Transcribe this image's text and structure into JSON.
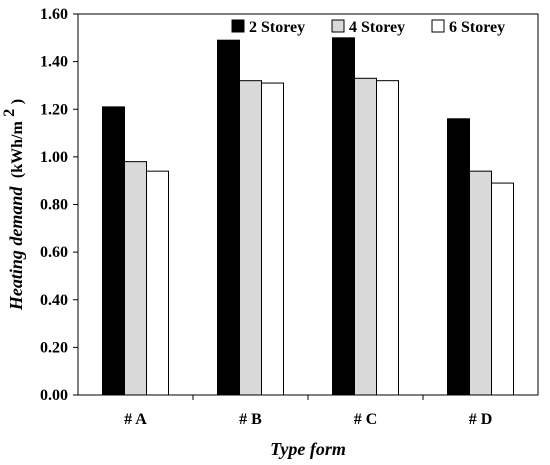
{
  "chart_data": {
    "type": "bar",
    "categories": [
      "# A",
      "# B",
      "# C",
      "# D"
    ],
    "series": [
      {
        "name": "2 Storey",
        "values": [
          1.21,
          1.49,
          1.5,
          1.16
        ],
        "color": "#000000"
      },
      {
        "name": "4 Storey",
        "values": [
          0.98,
          1.32,
          1.33,
          0.94
        ],
        "color": "#d9d9d9"
      },
      {
        "name": "6 Storey",
        "values": [
          0.94,
          1.31,
          1.32,
          0.89
        ],
        "color": "#ffffff"
      }
    ],
    "xlabel": "Type form",
    "ylabel": "Heating demand",
    "ylabel_unit": "(kWh/m",
    "ylabel_unit_sup": "2",
    "ylabel_unit_close": ")",
    "ylim": [
      0,
      1.6
    ],
    "yticks": [
      "0.00",
      "0.20",
      "0.40",
      "0.60",
      "0.80",
      "1.00",
      "1.20",
      "1.40",
      "1.60"
    ],
    "ytick_values": [
      0,
      0.2,
      0.4,
      0.6,
      0.8,
      1.0,
      1.2,
      1.4,
      1.6
    ],
    "legend_position": "top-right",
    "grid": false
  }
}
